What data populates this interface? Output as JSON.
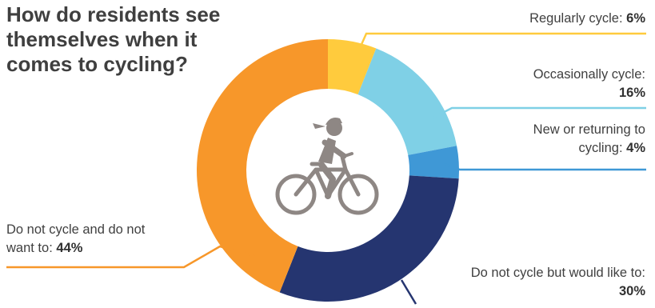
{
  "chart_data": {
    "type": "pie",
    "title": "How do residents see themselves when it comes to cycling?",
    "slices": [
      {
        "label": "Regularly cycle:",
        "value": 6,
        "value_label": "6%",
        "color": "#FFCB3D"
      },
      {
        "label": "Occasionally cycle:",
        "value": 16,
        "value_label": "16%",
        "color": "#7FD0E6"
      },
      {
        "label": "New or returning to cycling:",
        "value": 4,
        "value_label": "4%",
        "color": "#3F98D6"
      },
      {
        "label": "Do not cycle but would like to:",
        "value": 30,
        "value_label": "30%",
        "color": "#253570"
      },
      {
        "label": "Do not cycle and do not want to:",
        "value": 44,
        "value_label": "44%",
        "color": "#F7972A"
      }
    ],
    "center_icon": "cyclist-icon",
    "icon_color": "#8E8784"
  }
}
